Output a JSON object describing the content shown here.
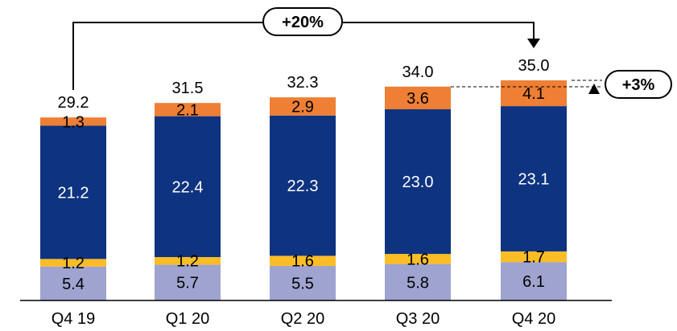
{
  "chart_data": {
    "type": "bar",
    "stacked": true,
    "categories": [
      "Q4 19",
      "Q1 20",
      "Q2 20",
      "Q3 20",
      "Q4 20"
    ],
    "series": [
      {
        "values": [
          5.4,
          5.7,
          5.5,
          5.8,
          6.1
        ],
        "color": "#9ea3cf",
        "label_color": "#000000"
      },
      {
        "values": [
          1.2,
          1.2,
          1.6,
          1.6,
          1.7
        ],
        "color": "#fbbd25",
        "label_color": "#000000"
      },
      {
        "values": [
          21.2,
          22.4,
          22.3,
          23.0,
          23.1
        ],
        "color": "#0e3380",
        "label_color": "#ffffff"
      },
      {
        "values": [
          1.3,
          2.1,
          2.9,
          3.6,
          4.1
        ],
        "color": "#ee7f34",
        "label_color": "#000000"
      }
    ],
    "totals": [
      "29.2",
      "31.5",
      "32.3",
      "34.0",
      "35.0"
    ],
    "ylim": [
      0,
      35.0
    ],
    "grid": false,
    "annotations": {
      "yoy": "+20%",
      "qoq": "+3%"
    }
  }
}
